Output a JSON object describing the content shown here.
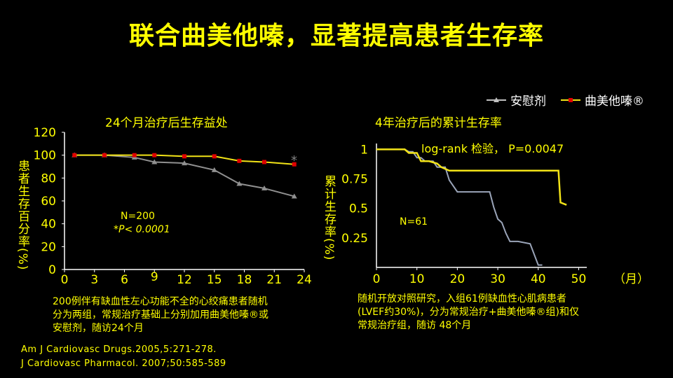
{
  "title": "联合曲美他嗪，显著提高患者生存率",
  "legend": {
    "placebo": "安慰剂",
    "trimetazidine": "曲美他嗪®"
  },
  "colors": {
    "placebo": "#909090",
    "trimetazidine": "#f2e317",
    "marker_placebo": "#909090",
    "marker_trim": "#e00000",
    "text_yellow": "#ffff00"
  },
  "left_note": [
    "200例伴有缺血性左心功能不全的心绞痛患者随机",
    "分为两组，常规治疗基础上分别加用曲美他嗪®或",
    "安慰剂，随访24个月"
  ],
  "right_note": [
    "随机开放对照研究，入组61例缺血性心肌病患者",
    "(LVEF约30%)，分为常规治疗+曲美他嗪®组)和仅",
    "常规治疗组，随访 48个月"
  ],
  "references": [
    "Am J Cardiovasc Drugs.2005,5:271-278.",
    "J Cardiovasc Pharmacol. 2007;50:585-589"
  ],
  "chart_data": [
    {
      "type": "line",
      "title": "24个月治疗后生存益处",
      "xlabel": "",
      "ylabel": "患者生存百分率(%)",
      "xlim": [
        0,
        24
      ],
      "ylim": [
        0,
        120
      ],
      "xticks": [
        "0",
        "3",
        "6",
        "9",
        "12",
        "15",
        "18",
        "21",
        "24"
      ],
      "yticks": [
        "0",
        "20",
        "40",
        "60",
        "80",
        "100",
        "120"
      ],
      "series": [
        {
          "name": "安慰剂",
          "x": [
            1,
            4,
            7,
            9,
            12,
            15,
            17.5,
            20,
            23
          ],
          "y": [
            100,
            100,
            98,
            94,
            93,
            87,
            75,
            71,
            64
          ]
        },
        {
          "name": "曲美他嗪®",
          "x": [
            1,
            4,
            7,
            9,
            12,
            15,
            17.5,
            20,
            23
          ],
          "y": [
            100,
            100,
            100,
            100,
            99,
            99,
            95,
            94,
            92
          ]
        }
      ],
      "annotations": [
        "N=200",
        "*P< 0.0001",
        "*"
      ]
    },
    {
      "type": "line",
      "title": "4年治疗后的累计生存率",
      "xlabel": "（月）",
      "ylabel": "累计生存率(%)",
      "xlim": [
        0,
        52
      ],
      "ylim": [
        0,
        1.05
      ],
      "xticks": [
        "0",
        "10",
        "20",
        "30",
        "40",
        "50"
      ],
      "yticks": [
        "0.25",
        "0.5",
        "0.75",
        "1"
      ],
      "series": [
        {
          "name": "安慰剂",
          "x": [
            0,
            7,
            8,
            9,
            10,
            11,
            12,
            14,
            15,
            17,
            18,
            20,
            21,
            28,
            29,
            30,
            31,
            32,
            33,
            35,
            38,
            40,
            41
          ],
          "y": [
            1,
            1,
            0.98,
            0.98,
            0.93,
            0.93,
            0.9,
            0.9,
            0.85,
            0.85,
            0.74,
            0.64,
            0.64,
            0.64,
            0.51,
            0.41,
            0.38,
            0.29,
            0.22,
            0.22,
            0.2,
            0.02,
            0.02
          ]
        },
        {
          "name": "曲美他嗪®",
          "x": [
            0,
            7,
            8,
            10,
            11,
            13,
            15,
            16,
            18,
            30,
            40,
            45,
            45.5,
            47
          ],
          "y": [
            1,
            1,
            0.97,
            0.97,
            0.9,
            0.9,
            0.88,
            0.85,
            0.82,
            0.82,
            0.82,
            0.82,
            0.55,
            0.53
          ]
        }
      ],
      "annotations": [
        "log-rank 检验， P=0.0047",
        "N=61"
      ]
    }
  ]
}
